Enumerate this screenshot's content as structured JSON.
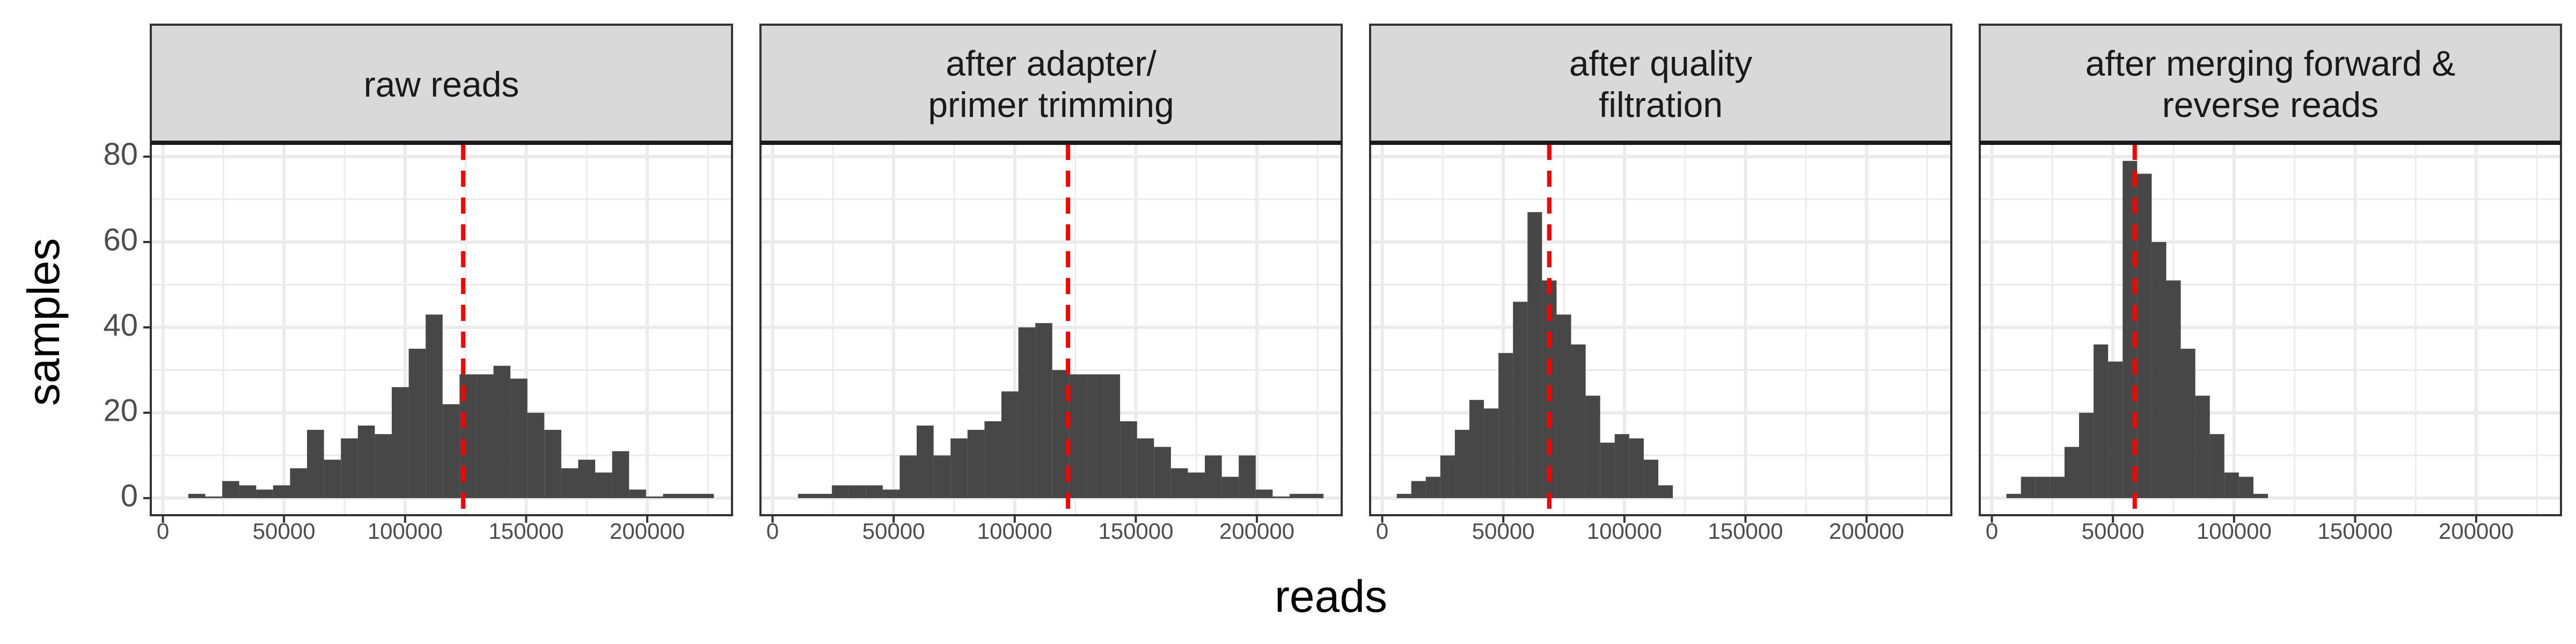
{
  "xlabel": "reads",
  "ylabel": "samples",
  "colors": {
    "bar": "#474747",
    "mean_line": "#ff0000",
    "strip_bg": "#d9d9d9",
    "grid": "#ebebeb",
    "panel_border": "#333333"
  },
  "chart_data": [
    {
      "type": "bar",
      "title": "raw reads",
      "xlim": [
        -5000,
        235000
      ],
      "ylim": [
        -4,
        83
      ],
      "x_ticks": [
        0,
        50000,
        100000,
        150000,
        200000
      ],
      "x_tick_labels": [
        "0",
        "50000",
        "100000",
        "150000",
        "200000"
      ],
      "y_ticks": [
        0,
        20,
        40,
        60,
        80
      ],
      "y_tick_labels": [
        "0",
        "20",
        "40",
        "60",
        "80"
      ],
      "bin_width": 7000,
      "bin_centers": [
        14000,
        21000,
        28000,
        35000,
        42000,
        49000,
        56000,
        63000,
        70000,
        77000,
        84000,
        91000,
        98000,
        105000,
        112000,
        119000,
        126000,
        133000,
        140000,
        147000,
        154000,
        161000,
        168000,
        175000,
        182000,
        189000,
        196000,
        203000,
        210000,
        217000,
        224000
      ],
      "counts": [
        1,
        0,
        4,
        3,
        2,
        3,
        7,
        16,
        9,
        14,
        17,
        15,
        26,
        35,
        43,
        22,
        29,
        29,
        31,
        28,
        20,
        16,
        7,
        9,
        6,
        11,
        2,
        0,
        1,
        1,
        1
      ],
      "mean": 124000
    },
    {
      "type": "bar",
      "title": "after adapter/\nprimer trimming",
      "xlim": [
        -5000,
        235000
      ],
      "ylim": [
        -4,
        83
      ],
      "x_ticks": [
        0,
        50000,
        100000,
        150000,
        200000
      ],
      "x_tick_labels": [
        "0",
        "50000",
        "100000",
        "150000",
        "200000"
      ],
      "y_ticks": [
        0,
        20,
        40,
        60,
        80
      ],
      "y_tick_labels": [
        "0",
        "20",
        "40",
        "60",
        "80"
      ],
      "bin_width": 7000,
      "bin_centers": [
        14000,
        21000,
        28000,
        35000,
        42000,
        49000,
        56000,
        63000,
        70000,
        77000,
        84000,
        91000,
        98000,
        105000,
        112000,
        119000,
        126000,
        133000,
        140000,
        147000,
        154000,
        161000,
        168000,
        175000,
        182000,
        189000,
        196000,
        203000,
        210000,
        217000,
        224000
      ],
      "counts": [
        1,
        1,
        3,
        3,
        3,
        2,
        10,
        17,
        10,
        14,
        16,
        18,
        25,
        40,
        41,
        30,
        29,
        29,
        29,
        18,
        14,
        12,
        7,
        6,
        10,
        5,
        10,
        2,
        0,
        1,
        1
      ],
      "mean": 122000
    },
    {
      "type": "bar",
      "title": "after quality\nfiltration",
      "xlim": [
        -5000,
        235000
      ],
      "ylim": [
        -4,
        83
      ],
      "x_ticks": [
        0,
        50000,
        100000,
        150000,
        200000
      ],
      "x_tick_labels": [
        "0",
        "50000",
        "100000",
        "150000",
        "200000"
      ],
      "y_ticks": [
        0,
        20,
        40,
        60,
        80
      ],
      "y_tick_labels": [
        "0",
        "20",
        "40",
        "60",
        "80"
      ],
      "bin_width": 6000,
      "bin_centers": [
        9000,
        15000,
        21000,
        27000,
        33000,
        39000,
        45000,
        51000,
        57000,
        63000,
        69000,
        75000,
        81000,
        87000,
        93000,
        99000,
        105000,
        111000,
        117000
      ],
      "counts": [
        1,
        4,
        5,
        10,
        16,
        23,
        21,
        34,
        46,
        67,
        51,
        43,
        36,
        24,
        13,
        15,
        14,
        9,
        3
      ],
      "mean": 69000
    },
    {
      "type": "bar",
      "title": "after merging forward &\nreverse reads",
      "xlim": [
        -5000,
        235000
      ],
      "ylim": [
        -4,
        83
      ],
      "x_ticks": [
        0,
        50000,
        100000,
        150000,
        200000
      ],
      "x_tick_labels": [
        "0",
        "50000",
        "100000",
        "150000",
        "200000"
      ],
      "y_ticks": [
        0,
        20,
        40,
        60,
        80
      ],
      "y_tick_labels": [
        "0",
        "20",
        "40",
        "60",
        "80"
      ],
      "bin_width": 6000,
      "bin_centers": [
        9000,
        15000,
        21000,
        27000,
        33000,
        39000,
        45000,
        51000,
        57000,
        63000,
        69000,
        75000,
        81000,
        87000,
        93000,
        99000,
        105000,
        111000
      ],
      "counts": [
        1,
        5,
        5,
        5,
        12,
        20,
        36,
        32,
        79,
        76,
        60,
        51,
        35,
        24,
        15,
        6,
        5,
        1
      ],
      "mean": 59000
    }
  ]
}
